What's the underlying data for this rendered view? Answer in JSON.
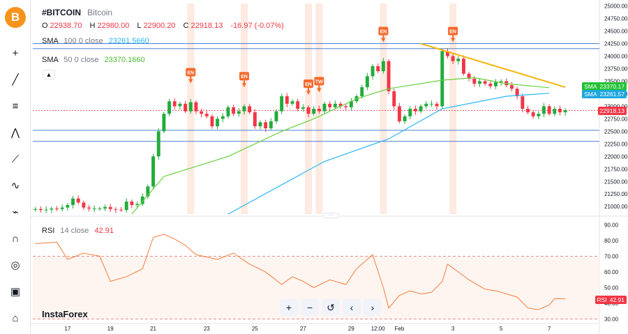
{
  "app": {
    "symbol": "#BITCOIN",
    "description": "Bitcoin",
    "watermark": "InstaForex",
    "logo_glyph": "B"
  },
  "ohlc": {
    "o_label": "O",
    "o": "22938.70",
    "h_label": "H",
    "h": "22980.00",
    "l_label": "L",
    "l": "22900.20",
    "c_label": "C",
    "c": "22918.13",
    "change": "-16.97 (-0.07%)"
  },
  "indicators": {
    "sma100": {
      "name": "SMA",
      "params": "100 0 close",
      "value": "23261.5660",
      "color": "#29b6f6"
    },
    "sma50": {
      "name": "SMA",
      "params": "50 0 close",
      "value": "23370.1660",
      "color": "#66d13d"
    },
    "rsi": {
      "name": "RSI",
      "params": "14 close",
      "value": "42.91",
      "color": "#f57c3b"
    }
  },
  "price_tags": {
    "sma50": {
      "label": "SMA",
      "value": "23370.17"
    },
    "sma100": {
      "label": "SMA",
      "value": "23261.57"
    },
    "last": {
      "value": "22918.13"
    },
    "rsi": {
      "label": "RSI",
      "value": "42.91"
    }
  },
  "toolbar": [
    {
      "name": "crosshair-tool-icon",
      "glyph": "+"
    },
    {
      "name": "trend-line-icon",
      "glyph": "╱"
    },
    {
      "name": "fib-icon",
      "glyph": "≡"
    },
    {
      "name": "patterns-icon",
      "glyph": "⋀"
    },
    {
      "name": "prediction-icon",
      "glyph": "⟋"
    },
    {
      "name": "text-icon",
      "glyph": "∿"
    },
    {
      "name": "measure-icon",
      "glyph": "⌁"
    },
    {
      "name": "magnet-icon",
      "glyph": "∩"
    },
    {
      "name": "hide-drawings-icon",
      "glyph": "◎"
    },
    {
      "name": "lock-drawings-icon",
      "glyph": "▣"
    },
    {
      "name": "remove-drawings-icon",
      "glyph": "⌂"
    }
  ],
  "nav": [
    {
      "name": "zoom-in-button",
      "glyph": "+"
    },
    {
      "name": "zoom-out-button",
      "glyph": "−"
    },
    {
      "name": "reset-chart-button",
      "glyph": "↺"
    },
    {
      "name": "scroll-left-button",
      "glyph": "‹"
    },
    {
      "name": "scroll-right-button",
      "glyph": "›"
    }
  ],
  "colors": {
    "up": "#26a69a",
    "up_bright": "#22ab3c",
    "down": "#f23645",
    "trend": "#f5b50c",
    "hline": "#4a7fd4",
    "event_band": "#fde5d8",
    "event_badge": "#f5692b"
  },
  "chart_data": [
    {
      "type": "candlestick",
      "title": "#BITCOIN",
      "price_ticks": [
        25000,
        24750,
        24500,
        24250,
        24000,
        23750,
        23500,
        23250,
        23000,
        22750,
        22500,
        22250,
        22000,
        21750,
        21500,
        21250,
        21000
      ],
      "ylim": [
        20850,
        25050
      ],
      "x_ticks": [
        {
          "label": "17",
          "idx": 6
        },
        {
          "label": "19",
          "idx": 14
        },
        {
          "label": "21",
          "idx": 22
        },
        {
          "label": "23",
          "idx": 32
        },
        {
          "label": "25",
          "idx": 41
        },
        {
          "label": "27",
          "idx": 50
        },
        {
          "label": "29",
          "idx": 59
        },
        {
          "label": "12:00",
          "idx": 64
        },
        {
          "label": "Feb",
          "idx": 68
        },
        {
          "label": "3",
          "idx": 78
        },
        {
          "label": "5",
          "idx": 87
        },
        {
          "label": "7",
          "idx": 96
        }
      ],
      "n_bars": 100,
      "closes": [
        20950,
        20930,
        20940,
        20960,
        20950,
        20980,
        21030,
        21160,
        21080,
        20980,
        20960,
        20960,
        20960,
        20990,
        20950,
        20940,
        20930,
        21100,
        21030,
        21050,
        21200,
        21400,
        22000,
        22500,
        22850,
        23100,
        23000,
        23050,
        22900,
        23080,
        22900,
        22850,
        22800,
        22600,
        22750,
        22800,
        22980,
        22850,
        22900,
        23000,
        22880,
        22600,
        22680,
        22560,
        22700,
        22900,
        23200,
        23050,
        23100,
        22950,
        22980,
        22850,
        22950,
        22900,
        23050,
        22980,
        23050,
        23000,
        22980,
        23100,
        23200,
        23380,
        23600,
        23800,
        23700,
        23900,
        23300,
        23000,
        22700,
        22800,
        22950,
        22900,
        23000,
        23050,
        23050,
        23000,
        24100,
        24000,
        23900,
        23950,
        23650,
        23550,
        23450,
        23500,
        23450,
        23400,
        23480,
        23500,
        23420,
        23350,
        23200,
        22950,
        22880,
        22800,
        22850,
        23000,
        22850,
        22950,
        22880,
        22918
      ],
      "series": [
        {
          "name": "SMA 100",
          "anchors": [
            [
              36,
              20850
            ],
            [
              54,
              21900
            ],
            [
              66,
              22350
            ],
            [
              76,
              22950
            ],
            [
              88,
              23200
            ],
            [
              96,
              23260
            ]
          ]
        },
        {
          "name": "SMA 50",
          "anchors": [
            [
              18,
              20850
            ],
            [
              24,
              21600
            ],
            [
              36,
              22000
            ],
            [
              46,
              22500
            ],
            [
              52,
              22750
            ],
            [
              60,
              23150
            ],
            [
              66,
              23350
            ],
            [
              76,
              23520
            ],
            [
              82,
              23570
            ],
            [
              88,
              23450
            ],
            [
              96,
              23370
            ]
          ]
        }
      ],
      "horizontal_levels": [
        24250,
        24150,
        22520,
        22300
      ],
      "last_price": 22918.13,
      "trendline": {
        "from": [
          72,
          24250
        ],
        "to": [
          99,
          23380
        ]
      },
      "events": [
        {
          "label": "EN",
          "idx": 29
        },
        {
          "label": "EN",
          "idx": 39
        },
        {
          "label": "EN",
          "idx": 51
        },
        {
          "label": "TW",
          "idx": 53
        },
        {
          "label": "EN",
          "idx": 65
        },
        {
          "label": "EN",
          "idx": 78
        }
      ]
    },
    {
      "type": "line",
      "title": "RSI 14 close",
      "y_ticks": [
        90,
        80,
        70,
        60,
        50,
        40,
        30
      ],
      "ylim": [
        28,
        92
      ],
      "levels": [
        70,
        30
      ],
      "series": [
        {
          "name": "RSI",
          "anchors": [
            [
              0,
              78
            ],
            [
              4,
              79
            ],
            [
              6,
              68
            ],
            [
              9,
              72
            ],
            [
              12,
              70
            ],
            [
              14,
              54
            ],
            [
              17,
              57
            ],
            [
              20,
              62
            ],
            [
              22,
              82
            ],
            [
              24,
              84
            ],
            [
              26,
              81
            ],
            [
              28,
              77
            ],
            [
              30,
              71
            ],
            [
              34,
              68
            ],
            [
              37,
              72
            ],
            [
              40,
              65
            ],
            [
              43,
              60
            ],
            [
              46,
              52
            ],
            [
              48,
              57
            ],
            [
              50,
              54
            ],
            [
              52,
              50
            ],
            [
              55,
              55
            ],
            [
              58,
              52
            ],
            [
              60,
              62
            ],
            [
              63,
              71
            ],
            [
              65,
              50
            ],
            [
              66,
              37
            ],
            [
              68,
              45
            ],
            [
              70,
              48
            ],
            [
              72,
              46
            ],
            [
              74,
              47
            ],
            [
              76,
              54
            ],
            [
              77,
              65
            ],
            [
              79,
              60
            ],
            [
              81,
              55
            ],
            [
              84,
              49
            ],
            [
              86,
              48
            ],
            [
              88,
              46
            ],
            [
              90,
              44
            ],
            [
              92,
              37
            ],
            [
              94,
              36
            ],
            [
              96,
              39
            ],
            [
              97,
              43
            ],
            [
              99,
              42.91
            ]
          ]
        }
      ]
    }
  ]
}
